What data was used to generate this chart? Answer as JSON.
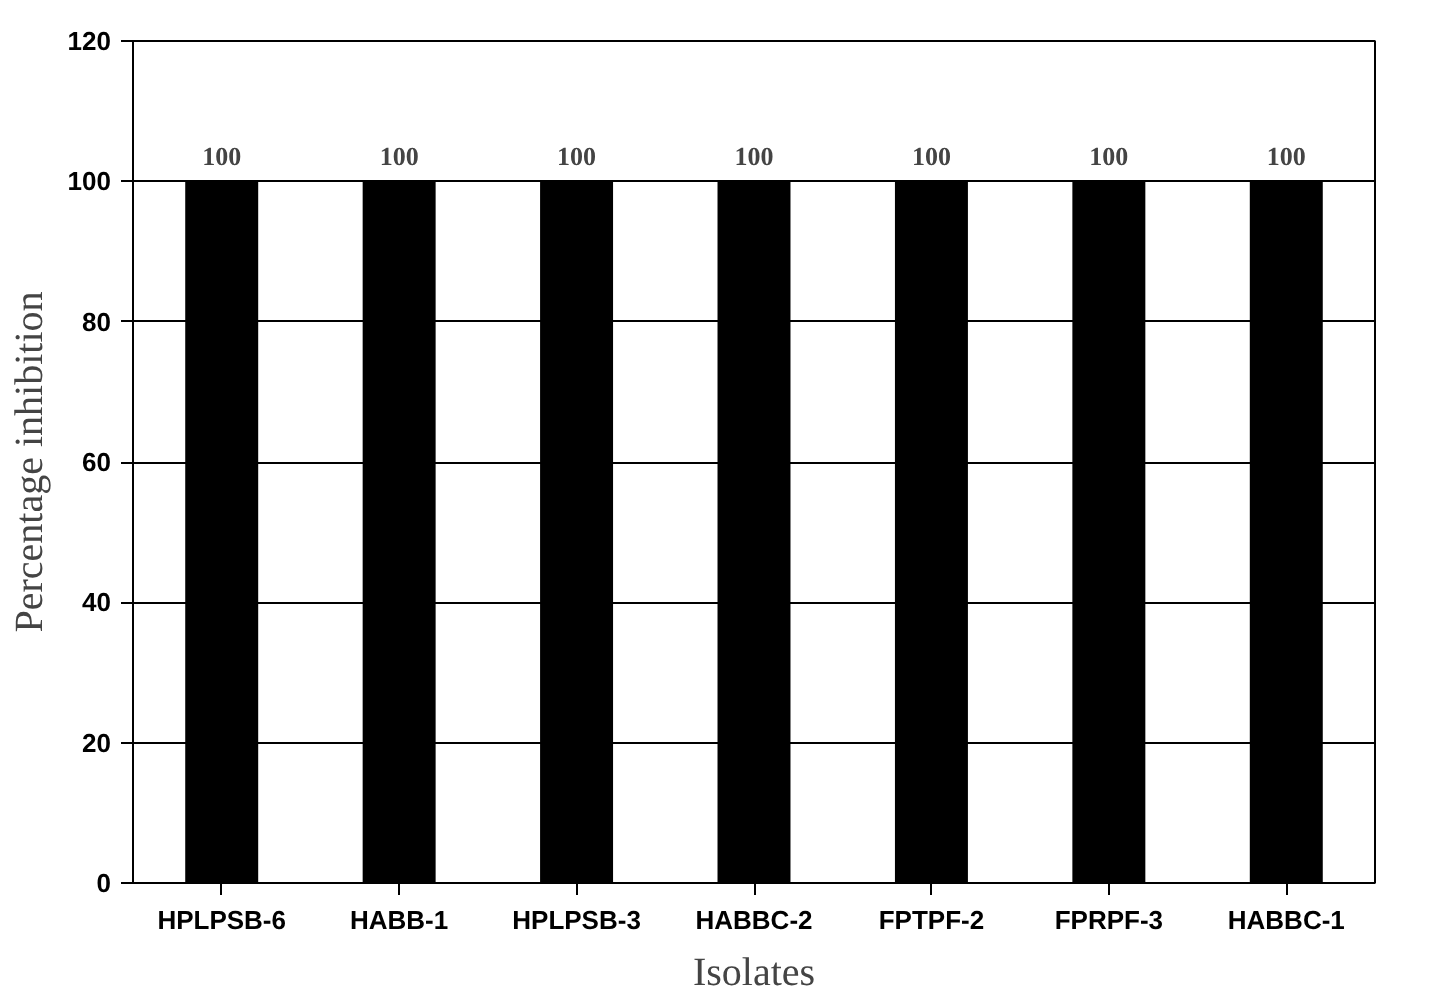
{
  "chart_data": {
    "type": "bar",
    "xlabel": "Isolates",
    "ylabel": "Percentage inhibition",
    "categories": [
      "HPLPSB-6",
      "HABB-1",
      "HPLPSB-3",
      "HABBC-2",
      "FPTPF-2",
      "FPRPF-3",
      "HABBC-1"
    ],
    "values": [
      100,
      100,
      100,
      100,
      100,
      100,
      100
    ],
    "color": "#000000",
    "ylim": [
      0,
      120
    ],
    "yticks": [
      0,
      20,
      40,
      60,
      80,
      100,
      120
    ],
    "grid": "y",
    "data_labels": true
  }
}
